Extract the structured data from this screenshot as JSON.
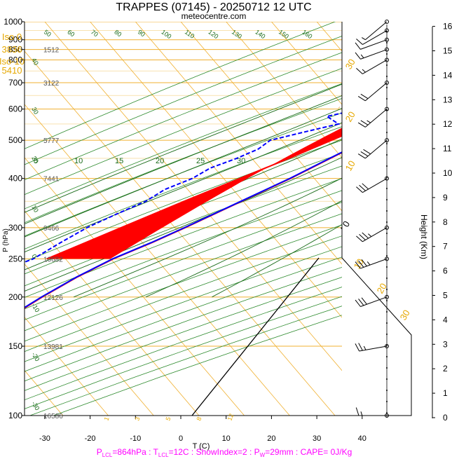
{
  "chart_data": {
    "type": "skew-t",
    "title": "TRAPPES (07145) - 20250712 12 UTC",
    "subtitle": "meteocentre.com",
    "xlabel": "T (C)",
    "ylabel": "P (hPa)",
    "y2label": "Height (Km)",
    "xlim": [
      -34,
      52
    ],
    "ylim_hpa": [
      1000,
      100
    ],
    "x_ticks": [
      "-30",
      "-20",
      "-10",
      "0",
      "10",
      "20",
      "30",
      "40"
    ],
    "p_ticks": [
      "1000",
      "900",
      "850",
      "800",
      "700",
      "600",
      "500",
      "400",
      "300",
      "250",
      "200",
      "150",
      "100"
    ],
    "height_ticks": [
      "0",
      "1",
      "2",
      "3",
      "4",
      "5",
      "6",
      "7",
      "8",
      "9",
      "10",
      "11",
      "12",
      "13",
      "14",
      "15",
      "16"
    ],
    "iso_info": [
      "Iso 0",
      "3836",
      "Iso-10",
      "5410"
    ],
    "footer": {
      "p_lcl": "P",
      "p_lcl_sub": "LCL",
      "p_lcl_val": "=864hPa : T",
      "t_lcl_sub": "LCL",
      "rest": "=12C : ShowIndex=2 : P",
      "pw_sub": "W",
      "pw_val": "=29mm : CAPE= 0J/Kg"
    },
    "geopotential_labels": [
      {
        "p": 100,
        "z": "16586"
      },
      {
        "p": 150,
        "z": "13981"
      },
      {
        "p": 200,
        "z": "12126"
      },
      {
        "p": 250,
        "z": "10682"
      },
      {
        "p": 300,
        "z": "9466"
      },
      {
        "p": 400,
        "z": "7441"
      },
      {
        "p": 500,
        "z": "5777"
      },
      {
        "p": 700,
        "z": "3122"
      },
      {
        "p": 850,
        "z": "1512"
      }
    ],
    "theta_labels": [
      "50",
      "60",
      "70",
      "80",
      "90",
      "100",
      "110",
      "120",
      "130",
      "140",
      "150",
      "160"
    ],
    "theta_e_labels": [
      "5",
      "10",
      "15",
      "20",
      "25",
      "30"
    ],
    "left_edge_labels": [
      "40",
      "30",
      "20",
      "10",
      "0",
      "-10",
      "-20",
      "-30"
    ],
    "mixing_ratio_labels": [
      "1",
      "3",
      "5",
      "8",
      "12"
    ],
    "hodograph_labels": [
      "10",
      "20",
      "30"
    ],
    "right_scale_labels": [
      "30",
      "20",
      "10",
      "0"
    ],
    "series": [
      {
        "name": "temperature",
        "color": "#0000ff",
        "points": [
          [
            1000,
            19.5
          ],
          [
            975,
            18
          ],
          [
            950,
            16.2
          ],
          [
            925,
            14.5
          ],
          [
            900,
            13
          ],
          [
            875,
            12
          ],
          [
            850,
            11.5
          ],
          [
            825,
            11
          ],
          [
            800,
            9.5
          ],
          [
            775,
            8
          ],
          [
            750,
            6.5
          ],
          [
            725,
            5
          ],
          [
            700,
            4
          ],
          [
            650,
            0.5
          ],
          [
            600,
            -3
          ],
          [
            550,
            -7
          ],
          [
            500,
            -11
          ],
          [
            450,
            -15.5
          ],
          [
            400,
            -20.5
          ],
          [
            350,
            -27
          ],
          [
            300,
            -34.5
          ],
          [
            275,
            -39
          ],
          [
            250,
            -44.5
          ],
          [
            225,
            -49
          ],
          [
            200,
            -53
          ],
          [
            180,
            -56
          ],
          [
            160,
            -59
          ],
          [
            150,
            -61
          ],
          [
            140,
            -63
          ],
          [
            125,
            -62
          ],
          [
            110,
            -62
          ],
          [
            100,
            -62
          ]
        ]
      },
      {
        "name": "dewpoint",
        "color": "#0000ff",
        "points": [
          [
            1000,
            15.5
          ],
          [
            975,
            14.5
          ],
          [
            950,
            13
          ],
          [
            925,
            12.5
          ],
          [
            900,
            12
          ],
          [
            875,
            10.5
          ],
          [
            850,
            9
          ],
          [
            825,
            8
          ],
          [
            800,
            5.5
          ],
          [
            775,
            2
          ],
          [
            750,
            -1
          ],
          [
            725,
            -6
          ],
          [
            700,
            -3
          ],
          [
            675,
            -10
          ],
          [
            650,
            -11
          ],
          [
            625,
            -13
          ],
          [
            600,
            -18
          ],
          [
            575,
            -24
          ],
          [
            550,
            -20
          ],
          [
            525,
            -26
          ],
          [
            500,
            -32
          ],
          [
            475,
            -33
          ],
          [
            450,
            -36
          ],
          [
            425,
            -40
          ],
          [
            400,
            -42
          ],
          [
            375,
            -46
          ],
          [
            350,
            -48
          ],
          [
            325,
            -52
          ],
          [
            300,
            -56
          ],
          [
            275,
            -59
          ],
          [
            250,
            -62
          ],
          [
            225,
            -69
          ],
          [
            210,
            -72
          ],
          [
            200,
            -76
          ],
          [
            180,
            -77
          ],
          [
            160,
            -80
          ],
          [
            140,
            -80
          ],
          [
            120,
            -82
          ],
          [
            100,
            -85
          ]
        ]
      },
      {
        "name": "parcel",
        "color": "#ff0000",
        "points": [
          [
            1000,
            27
          ],
          [
            975,
            24
          ],
          [
            950,
            21.5
          ],
          [
            925,
            19
          ],
          [
            900,
            16.5
          ],
          [
            864,
            12
          ],
          [
            800,
            8
          ],
          [
            750,
            4.5
          ],
          [
            700,
            0.5
          ],
          [
            650,
            -3.5
          ],
          [
            600,
            -8
          ],
          [
            550,
            -13
          ],
          [
            500,
            -18.5
          ],
          [
            450,
            -24.5
          ],
          [
            400,
            -31.5
          ],
          [
            350,
            -39.5
          ],
          [
            300,
            -48.5
          ],
          [
            250,
            -59
          ]
        ]
      }
    ],
    "wind_barbs": [
      {
        "p": 1000,
        "dir": 230,
        "spd": 5
      },
      {
        "p": 950,
        "dir": 240,
        "spd": 10
      },
      {
        "p": 900,
        "dir": 250,
        "spd": 10
      },
      {
        "p": 850,
        "dir": 250,
        "spd": 15
      },
      {
        "p": 800,
        "dir": 240,
        "spd": 15
      },
      {
        "p": 700,
        "dir": 230,
        "spd": 20
      },
      {
        "p": 600,
        "dir": 230,
        "spd": 25
      },
      {
        "p": 500,
        "dir": 230,
        "spd": 30
      },
      {
        "p": 400,
        "dir": 240,
        "spd": 30
      },
      {
        "p": 300,
        "dir": 240,
        "spd": 35
      },
      {
        "p": 250,
        "dir": 250,
        "spd": 35
      },
      {
        "p": 200,
        "dir": 250,
        "spd": 30
      },
      {
        "p": 150,
        "dir": 260,
        "spd": 25
      },
      {
        "p": 100,
        "dir": 270,
        "spd": 15
      }
    ],
    "legend": "none"
  }
}
